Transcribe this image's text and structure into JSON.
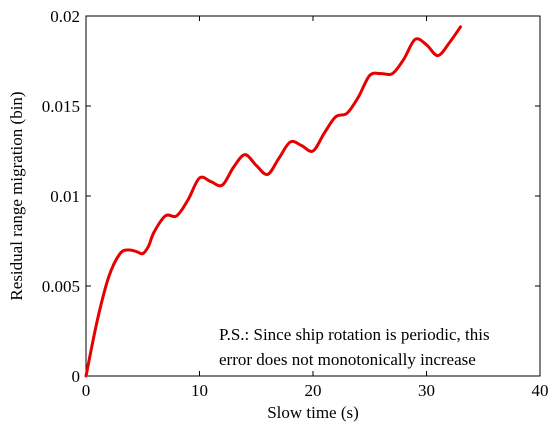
{
  "chart_data": {
    "type": "line",
    "xlabel": "Slow time (s)",
    "ylabel": "Residual range migration (bin)",
    "xlim": [
      0,
      40
    ],
    "ylim": [
      0,
      0.02
    ],
    "x_ticks": [
      0,
      10,
      20,
      30,
      40
    ],
    "x_tick_labels": [
      "0",
      "10",
      "20",
      "30",
      "40"
    ],
    "y_ticks": [
      0,
      0.005,
      0.01,
      0.015,
      0.02
    ],
    "y_tick_labels": [
      "0",
      "0.005",
      "0.01",
      "0.015",
      "0.02"
    ],
    "grid": false,
    "annotation": [
      "P.S.: Since ship rotation is periodic, this",
      "error does not monotonically increase"
    ],
    "series": [
      {
        "color": "#e60000",
        "x": [
          0,
          1,
          2,
          3,
          3.8,
          4.5,
          5,
          5.5,
          6,
          7,
          8,
          9,
          10,
          11,
          12,
          13,
          14,
          15,
          16,
          17,
          18,
          19,
          20,
          21,
          22,
          23,
          24,
          25,
          26,
          27,
          28,
          29,
          30,
          31,
          32,
          33
        ],
        "y": [
          0,
          0.0031,
          0.0055,
          0.0068,
          0.007,
          0.0069,
          0.0068,
          0.0072,
          0.008,
          0.0089,
          0.0089,
          0.0098,
          0.011,
          0.0108,
          0.0106,
          0.0116,
          0.0123,
          0.0117,
          0.0112,
          0.0121,
          0.013,
          0.0128,
          0.0125,
          0.0135,
          0.0144,
          0.0146,
          0.0155,
          0.0167,
          0.0168,
          0.0168,
          0.0176,
          0.0187,
          0.0184,
          0.0178,
          0.0185,
          0.0194
        ]
      }
    ]
  }
}
